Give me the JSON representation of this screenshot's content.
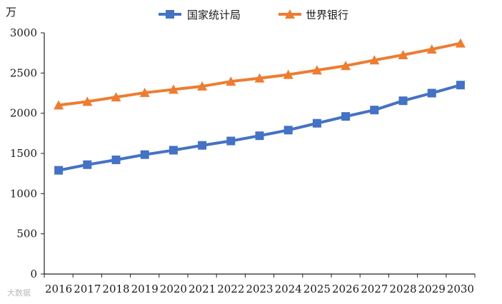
{
  "chart_data": {
    "type": "line",
    "ylabel": "万",
    "ylim": [
      0,
      3000
    ],
    "yticks": [
      0,
      500,
      1000,
      1500,
      2000,
      2500,
      3000
    ],
    "categories": [
      "2016",
      "2017",
      "2018",
      "2019",
      "2020",
      "2021",
      "2022",
      "2023",
      "2024",
      "2025",
      "2026",
      "2027",
      "2028",
      "2029",
      "2030"
    ],
    "legend_position": "top-center",
    "grid": false,
    "series": [
      {
        "name": "国家统计局",
        "color": "#4472C4",
        "marker": "square",
        "values": [
          1290,
          1360,
          1420,
          1485,
          1540,
          1600,
          1655,
          1720,
          1790,
          1875,
          1960,
          2040,
          2155,
          2250,
          2350
        ]
      },
      {
        "name": "世界银行",
        "color": "#ED7D31",
        "marker": "triangle",
        "values": [
          2100,
          2145,
          2200,
          2255,
          2295,
          2335,
          2395,
          2435,
          2480,
          2535,
          2590,
          2660,
          2725,
          2795,
          2870
        ]
      }
    ]
  },
  "watermark": "大数据"
}
